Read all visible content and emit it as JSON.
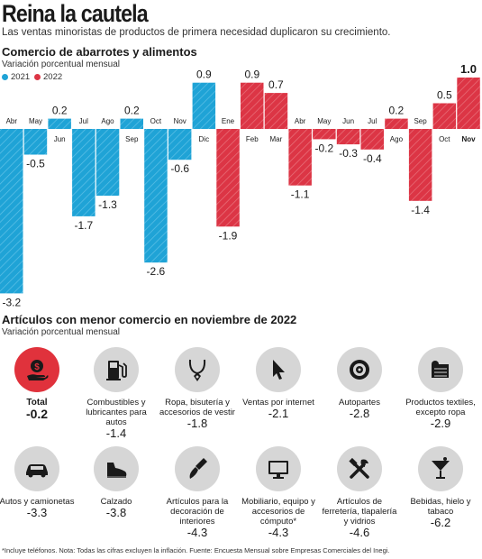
{
  "header": {
    "title": "Reina la cautela",
    "subtitle": "Las ventas minoristas de productos de primera necesidad duplicaron su crecimiento."
  },
  "chart_data": {
    "type": "bar",
    "title": "Comercio de abarrotes y alimentos",
    "subtitle": "Variación porcentual mensual",
    "legend": [
      {
        "name": "2021",
        "color": "#1fa3d6"
      },
      {
        "name": "2022",
        "color": "#dc3545"
      }
    ],
    "categories": [
      "Abr",
      "May",
      "Jun",
      "Jul",
      "Ago",
      "Sep",
      "Oct",
      "Nov",
      "Dic",
      "Ene",
      "Feb",
      "Mar",
      "Abr",
      "May",
      "Jun",
      "Jul",
      "Ago",
      "Sep",
      "Oct",
      "Nov"
    ],
    "values": [
      -3.2,
      -0.5,
      0.2,
      -1.7,
      -1.3,
      0.2,
      -2.6,
      -0.6,
      0.9,
      -1.9,
      0.9,
      0.7,
      -1.1,
      -0.2,
      -0.3,
      -0.4,
      0.2,
      -1.4,
      0.5,
      1.0
    ],
    "value_labels": [
      "-3.2",
      "-0.5",
      "0.2",
      "-1.7",
      "-1.3",
      "0.2",
      "-2.6",
      "-0.6",
      "0.9",
      "-1.9",
      "0.9",
      "0.7",
      "-1.1",
      "-0.2",
      "-0.3",
      "-0.4",
      "0.2",
      "-1.4",
      "0.5",
      "1.0"
    ],
    "years": [
      "2021",
      "2021",
      "2021",
      "2021",
      "2021",
      "2021",
      "2021",
      "2021",
      "2021",
      "2022",
      "2022",
      "2022",
      "2022",
      "2022",
      "2022",
      "2022",
      "2022",
      "2022",
      "2022",
      "2022"
    ],
    "ylim": [
      -3.2,
      1.0
    ],
    "grid": false,
    "legend_position": "top-left"
  },
  "section2": {
    "title": "Artículos con menor comercio en noviembre de 2022",
    "subtitle": "Variación porcentual mensual",
    "items": [
      {
        "label": "Total",
        "value": "-0.2",
        "icon": "money-hand-icon"
      },
      {
        "label": "Combustibles y lubricantes para autos",
        "value": "-1.4",
        "icon": "gas-pump-icon"
      },
      {
        "label": "Ropa, bisutería y accesorios de vestir",
        "value": "-1.8",
        "icon": "necklace-icon"
      },
      {
        "label": "Ventas por internet",
        "value": "-2.1",
        "icon": "cursor-icon"
      },
      {
        "label": "Autopartes",
        "value": "-2.8",
        "icon": "brake-disc-icon"
      },
      {
        "label": "Productos textiles, excepto ropa",
        "value": "-2.9",
        "icon": "fabric-roll-icon"
      },
      {
        "label": "Autos y camionetas",
        "value": "-3.3",
        "icon": "car-icon"
      },
      {
        "label": "Calzado",
        "value": "-3.8",
        "icon": "shoe-icon"
      },
      {
        "label": "Artículos para la decoración de interiores",
        "value": "-4.3",
        "icon": "paint-brush-icon"
      },
      {
        "label": "Mobiliario, equipo y accesorios de cómputo*",
        "value": "-4.3",
        "icon": "monitor-icon"
      },
      {
        "label": "Artículos de ferretería, tlapalería y vidrios",
        "value": "-4.6",
        "icon": "tools-icon"
      },
      {
        "label": "Bebidas, hielo y tabaco",
        "value": "-6.2",
        "icon": "cocktail-icon"
      }
    ]
  },
  "footnote": "*Incluye teléfonos. Nota: Todas las cifras excluyen la inflación. Fuente: Encuesta Mensual sobre Empresas Comerciales del Inegi."
}
